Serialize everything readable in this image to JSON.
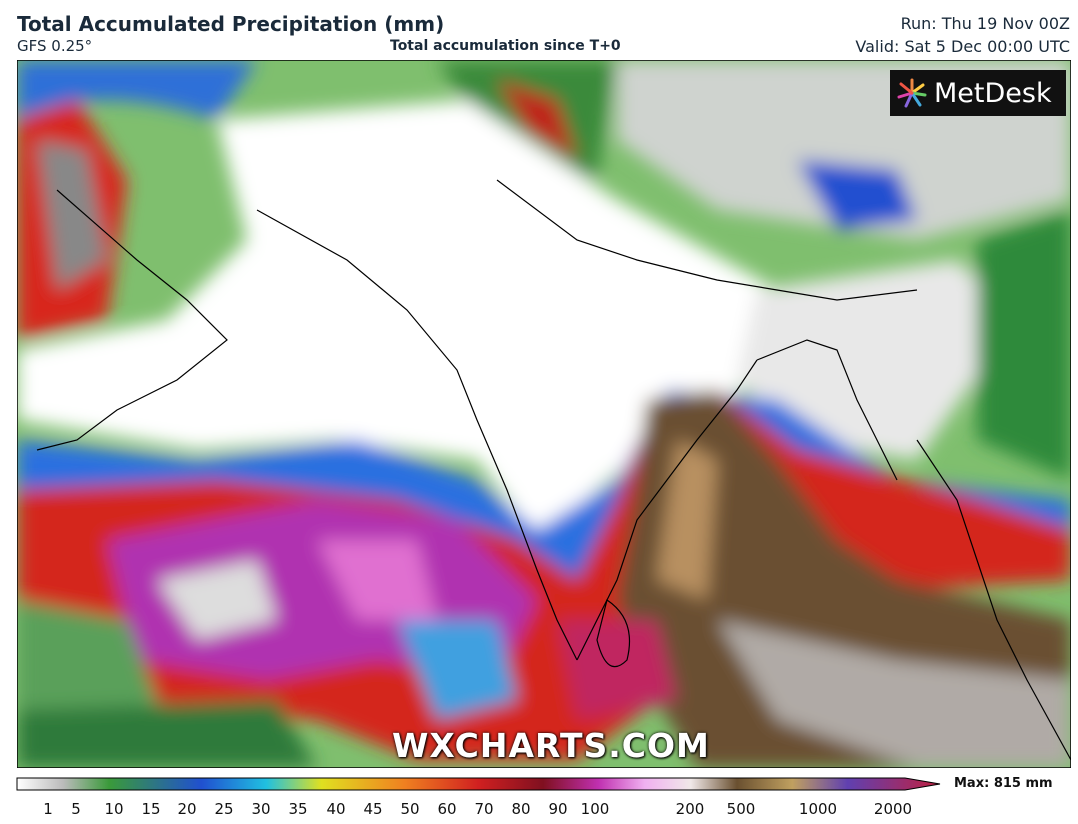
{
  "header": {
    "title": "Total Accumulated Precipitation (mm)",
    "model": "GFS 0.25°",
    "subtitle": "Total accumulation since T+0",
    "run": "Run: Thu 19 Nov 00Z",
    "valid": "Valid: Sat 5 Dec 00:00 UTC"
  },
  "logo": "MetDesk",
  "watermark": "WXCHARTS.COM",
  "legend": {
    "ticks": [
      "1",
      "5",
      "10",
      "15",
      "20",
      "25",
      "30",
      "35",
      "40",
      "45",
      "50",
      "60",
      "70",
      "80",
      "90",
      "100",
      "200",
      "500",
      "1000",
      "2000"
    ],
    "max": "Max: 815 mm"
  }
}
